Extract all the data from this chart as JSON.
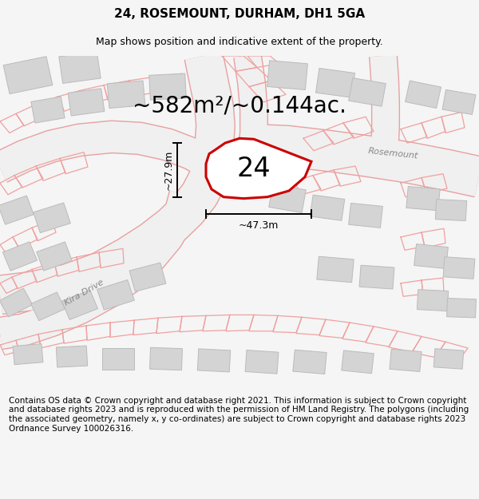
{
  "title": "24, ROSEMOUNT, DURHAM, DH1 5GA",
  "subtitle": "Map shows position and indicative extent of the property.",
  "area_label": "~582m²/~0.144ac.",
  "width_label": "~47.3m",
  "height_label": "~27.9m",
  "plot_number": "24",
  "street_label_1": "Rosemount",
  "street_label_2": "Kira Drive",
  "footer": "Contains OS data © Crown copyright and database right 2021. This information is subject to Crown copyright and database rights 2023 and is reproduced with the permission of HM Land Registry. The polygons (including the associated geometry, namely x, y co-ordinates) are subject to Crown copyright and database rights 2023 Ordnance Survey 100026316.",
  "bg_color": "#f5f5f5",
  "map_bg": "#ffffff",
  "plot_edge": "#cc0000",
  "building_fill": "#d4d4d4",
  "building_edge": "#bbbbbb",
  "prop_color": "#f0a0a0",
  "title_fontsize": 11,
  "subtitle_fontsize": 9,
  "area_fontsize": 20,
  "number_fontsize": 24,
  "footer_fontsize": 7.5,
  "street_fontsize": 8
}
